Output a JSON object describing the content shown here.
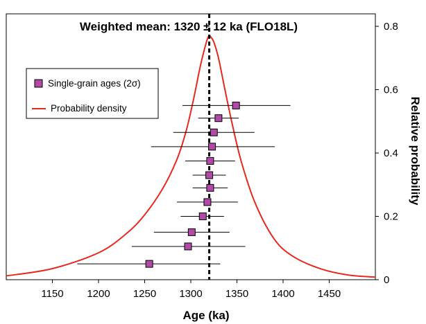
{
  "chart_data": {
    "type": "scatter",
    "title": "Weighted mean: 1320 ± 12 ka (FLO18L)",
    "xlabel": "Age (ka)",
    "ylabel": "Relative probability",
    "xlim": [
      1100,
      1500
    ],
    "ylim": [
      0,
      0.8
    ],
    "x_ticks": [
      1150,
      1200,
      1250,
      1300,
      1350,
      1400,
      1450
    ],
    "y_ticks": [
      0,
      0.2,
      0.4,
      0.6,
      0.8
    ],
    "y_tick_labels": [
      "0",
      "0.2",
      "0.4",
      "0.6",
      "0.8"
    ],
    "y_axis_side": "right",
    "legend_position": "upper-left",
    "weighted_mean": 1320,
    "weighted_mean_uncertainty": 12,
    "series": [
      {
        "name": "Single-grain ages (2σ)",
        "kind": "points-with-error-bars",
        "color": "#b04aa6",
        "points": [
          {
            "age": 1349,
            "err_low": 1291,
            "err_high": 1408,
            "y": 0.55
          },
          {
            "age": 1330,
            "err_low": 1308,
            "err_high": 1352,
            "y": 0.51
          },
          {
            "age": 1325,
            "err_low": 1281,
            "err_high": 1369,
            "y": 0.465
          },
          {
            "age": 1323,
            "err_low": 1257,
            "err_high": 1391,
            "y": 0.42
          },
          {
            "age": 1321,
            "err_low": 1294,
            "err_high": 1348,
            "y": 0.375
          },
          {
            "age": 1320,
            "err_low": 1302,
            "err_high": 1338,
            "y": 0.33
          },
          {
            "age": 1321,
            "err_low": 1302,
            "err_high": 1340,
            "y": 0.29
          },
          {
            "age": 1318,
            "err_low": 1285,
            "err_high": 1351,
            "y": 0.245
          },
          {
            "age": 1313,
            "err_low": 1289,
            "err_high": 1336,
            "y": 0.2
          },
          {
            "age": 1301,
            "err_low": 1260,
            "err_high": 1342,
            "y": 0.15
          },
          {
            "age": 1297,
            "err_low": 1236,
            "err_high": 1359,
            "y": 0.105
          },
          {
            "age": 1255,
            "err_low": 1177,
            "err_high": 1332,
            "y": 0.05
          }
        ]
      },
      {
        "name": "Probability density",
        "kind": "line",
        "color": "#e8281e",
        "x": [
          1100,
          1150,
          1200,
          1230,
          1250,
          1270,
          1285,
          1295,
          1303,
          1310,
          1315,
          1318,
          1320,
          1322,
          1325,
          1330,
          1337,
          1345,
          1355,
          1370,
          1390,
          1410,
          1440,
          1470,
          1500
        ],
        "y": [
          0.012,
          0.035,
          0.085,
          0.145,
          0.205,
          0.29,
          0.38,
          0.47,
          0.57,
          0.67,
          0.73,
          0.76,
          0.77,
          0.765,
          0.75,
          0.7,
          0.6,
          0.49,
          0.37,
          0.24,
          0.13,
          0.075,
          0.035,
          0.015,
          0.008
        ]
      }
    ]
  }
}
